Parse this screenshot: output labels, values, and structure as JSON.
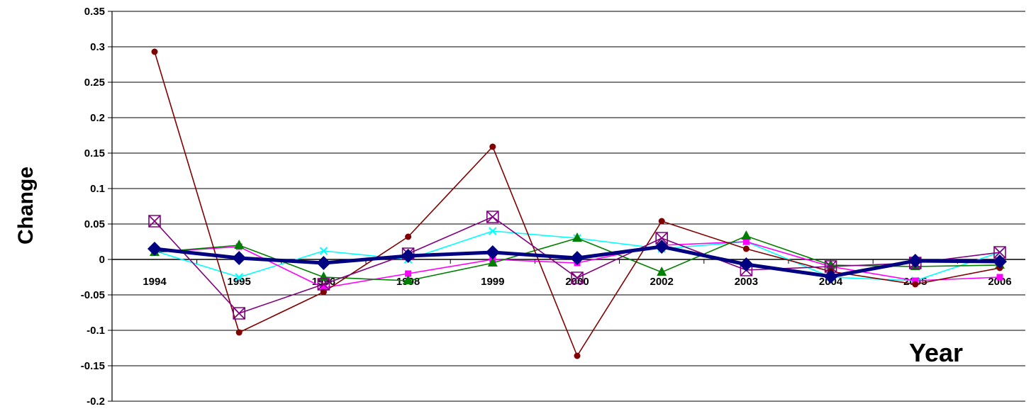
{
  "chart_data": {
    "type": "line",
    "title": "",
    "xlabel": "Year",
    "ylabel": "Change",
    "categories": [
      "1994",
      "1995",
      "1996",
      "1998",
      "1999",
      "2000",
      "2002",
      "2003",
      "2004",
      "2005",
      "2006"
    ],
    "ylim": [
      -0.2,
      0.35
    ],
    "yticks": [
      "0.35",
      "0.3",
      "0.25",
      "0.2",
      "0.15",
      "0.1",
      "0.05",
      "0",
      "-0.05",
      "-0.1",
      "-0.15",
      "-0.2"
    ],
    "grid": true,
    "legend": "none",
    "series": [
      {
        "color": "#00ffff",
        "marker": "x",
        "values": [
          0.012,
          -0.025,
          0.012,
          0.0,
          0.04,
          0.03,
          0.015,
          0.025,
          -0.025,
          -0.03,
          0.01
        ]
      },
      {
        "color": "#ff00ff",
        "marker": "square",
        "values": [
          0.01,
          0.018,
          -0.04,
          -0.02,
          0.0,
          -0.005,
          0.02,
          0.025,
          -0.01,
          -0.03,
          -0.025
        ]
      },
      {
        "color": "#008000",
        "marker": "triangle",
        "values": [
          0.01,
          0.02,
          -0.025,
          -0.03,
          -0.005,
          0.03,
          -0.018,
          0.033,
          -0.008,
          -0.01,
          -0.008
        ]
      },
      {
        "color": "#800000",
        "marker": "circle",
        "values": [
          0.293,
          -0.103,
          -0.046,
          0.032,
          0.159,
          -0.136,
          0.054,
          0.015,
          -0.017,
          -0.035,
          -0.012
        ]
      },
      {
        "color": "#800080",
        "marker": "boxx",
        "values": [
          0.054,
          -0.076,
          -0.035,
          0.008,
          0.06,
          -0.026,
          0.03,
          -0.015,
          -0.01,
          -0.005,
          0.01
        ]
      },
      {
        "color": "#000080",
        "marker": "diamond",
        "thick": true,
        "values": [
          0.015,
          0.002,
          -0.005,
          0.005,
          0.01,
          0.002,
          0.018,
          -0.007,
          -0.024,
          -0.002,
          -0.003
        ]
      }
    ]
  }
}
